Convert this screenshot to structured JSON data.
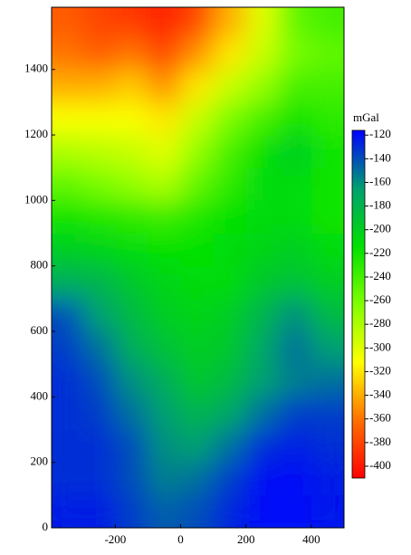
{
  "chart_data": {
    "type": "heatmap",
    "x": [
      -350,
      -250,
      -150,
      -50,
      50,
      150,
      250,
      350,
      450
    ],
    "y": [
      50,
      150,
      250,
      350,
      450,
      550,
      650,
      750,
      850,
      950,
      1050,
      1150,
      1250,
      1350,
      1450,
      1550
    ],
    "z": [
      [
        -125,
        -125,
        -135,
        -145,
        -140,
        -128,
        -118,
        -118,
        -122
      ],
      [
        -130,
        -130,
        -140,
        -155,
        -150,
        -135,
        -120,
        -118,
        -125
      ],
      [
        -130,
        -130,
        -140,
        -160,
        -165,
        -150,
        -130,
        -125,
        -130
      ],
      [
        -130,
        -135,
        -150,
        -165,
        -180,
        -170,
        -150,
        -135,
        -135
      ],
      [
        -130,
        -140,
        -160,
        -175,
        -195,
        -185,
        -165,
        -155,
        -150
      ],
      [
        -135,
        -150,
        -175,
        -190,
        -200,
        -195,
        -170,
        -150,
        -165
      ],
      [
        -140,
        -165,
        -185,
        -200,
        -205,
        -200,
        -180,
        -160,
        -185
      ],
      [
        -175,
        -180,
        -195,
        -205,
        -210,
        -210,
        -195,
        -190,
        -200
      ],
      [
        -200,
        -205,
        -210,
        -215,
        -215,
        -210,
        -205,
        -200,
        -210
      ],
      [
        -220,
        -225,
        -230,
        -235,
        -225,
        -215,
        -210,
        -210,
        -220
      ],
      [
        -250,
        -260,
        -270,
        -280,
        -250,
        -230,
        -210,
        -210,
        -220
      ],
      [
        -280,
        -285,
        -290,
        -300,
        -270,
        -240,
        -215,
        -200,
        -220
      ],
      [
        -310,
        -310,
        -310,
        -320,
        -290,
        -260,
        -240,
        -220,
        -230
      ],
      [
        -340,
        -340,
        -330,
        -350,
        -320,
        -290,
        -270,
        -240,
        -240
      ],
      [
        -360,
        -370,
        -360,
        -380,
        -350,
        -320,
        -290,
        -260,
        -250
      ],
      [
        -370,
        -380,
        -385,
        -395,
        -380,
        -340,
        -300,
        -250,
        -240
      ]
    ],
    "xlim": [
      -395,
      500
    ],
    "ylim": [
      0,
      1590
    ],
    "xticks": [
      -200,
      0,
      200,
      400
    ],
    "yticks": [
      0,
      200,
      400,
      600,
      800,
      1000,
      1200,
      1400
    ],
    "colorbar": {
      "label": "mGal",
      "clim": [
        -410,
        -116
      ],
      "ticks": [
        -120,
        -140,
        -160,
        -180,
        -200,
        -220,
        -240,
        -260,
        -280,
        -300,
        -320,
        -340,
        -360,
        -380,
        -400
      ],
      "colors": [
        "#ff0000",
        "#ff7000",
        "#ffff00",
        "#80ff00",
        "#00e000",
        "#00a070",
        "#0000ff"
      ]
    }
  }
}
